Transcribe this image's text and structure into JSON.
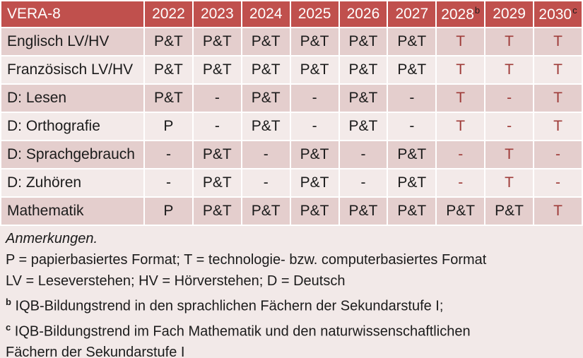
{
  "colors": {
    "header_bg": "#C0504D",
    "header_text": "#FFFFFF",
    "band_dark": "#E4CECD",
    "band_light": "#F3EAE9",
    "body_text": "#1B1B1B",
    "tech_red_text": "#9E3B38"
  },
  "table": {
    "corner_label": "VERA-8",
    "columns": [
      {
        "label": "2022"
      },
      {
        "label": "2023"
      },
      {
        "label": "2024"
      },
      {
        "label": "2025"
      },
      {
        "label": "2026"
      },
      {
        "label": "2027"
      },
      {
        "label": "2028",
        "sup": "b"
      },
      {
        "label": "2029"
      },
      {
        "label": "2030",
        "sup": "c"
      }
    ],
    "rows": [
      {
        "label": "Englisch LV/HV",
        "values": [
          "P&T",
          "P&T",
          "P&T",
          "P&T",
          "P&T",
          "P&T",
          "T",
          "T",
          "T"
        ],
        "red": [
          false,
          false,
          false,
          false,
          false,
          false,
          true,
          true,
          true
        ]
      },
      {
        "label": "Französisch LV/HV",
        "values": [
          "P&T",
          "P&T",
          "P&T",
          "P&T",
          "P&T",
          "P&T",
          "T",
          "T",
          "T"
        ],
        "red": [
          false,
          false,
          false,
          false,
          false,
          false,
          true,
          true,
          true
        ]
      },
      {
        "label": "D: Lesen",
        "values": [
          "P&T",
          "-",
          "P&T",
          "-",
          "P&T",
          "-",
          "T",
          "-",
          "T"
        ],
        "red": [
          false,
          false,
          false,
          false,
          false,
          false,
          true,
          true,
          true
        ]
      },
      {
        "label": "D: Orthografie",
        "values": [
          "P",
          "-",
          "P&T",
          "-",
          "P&T",
          "-",
          "T",
          "-",
          "T"
        ],
        "red": [
          false,
          false,
          false,
          false,
          false,
          false,
          true,
          true,
          true
        ]
      },
      {
        "label": "D: Sprachgebrauch",
        "values": [
          "-",
          "P&T",
          "-",
          "P&T",
          "-",
          "P&T",
          "-",
          "T",
          "-"
        ],
        "red": [
          false,
          false,
          false,
          false,
          false,
          false,
          true,
          true,
          true
        ]
      },
      {
        "label": "D: Zuhören",
        "values": [
          "-",
          "P&T",
          "-",
          "P&T",
          "-",
          "P&T",
          "-",
          "T",
          "-"
        ],
        "red": [
          false,
          false,
          false,
          false,
          false,
          false,
          true,
          true,
          true
        ]
      },
      {
        "label": "Mathematik",
        "values": [
          "P",
          "P&T",
          "P&T",
          "P&T",
          "P&T",
          "P&T",
          "P&T",
          "P&T",
          "T"
        ],
        "red": [
          false,
          false,
          false,
          false,
          false,
          false,
          false,
          false,
          true
        ]
      }
    ]
  },
  "notes": {
    "heading": "Anmerkungen.",
    "line_formats": "P = papierbasiertes Format; T = technologie- bzw. computerbasiertes Format",
    "line_abbreviations": "LV = Leseverstehen; HV = Hörverstehen; D = Deutsch",
    "footnote_b": {
      "marker": "b",
      "text": "IQB-Bildungstrend in den sprachlichen Fächern der Sekundarstufe I;"
    },
    "footnote_c": {
      "marker": "c",
      "text": "IQB-Bildungstrend im Fach Mathematik und den naturwissenschaftlichen Fächern der Sekundarstufe I"
    }
  }
}
